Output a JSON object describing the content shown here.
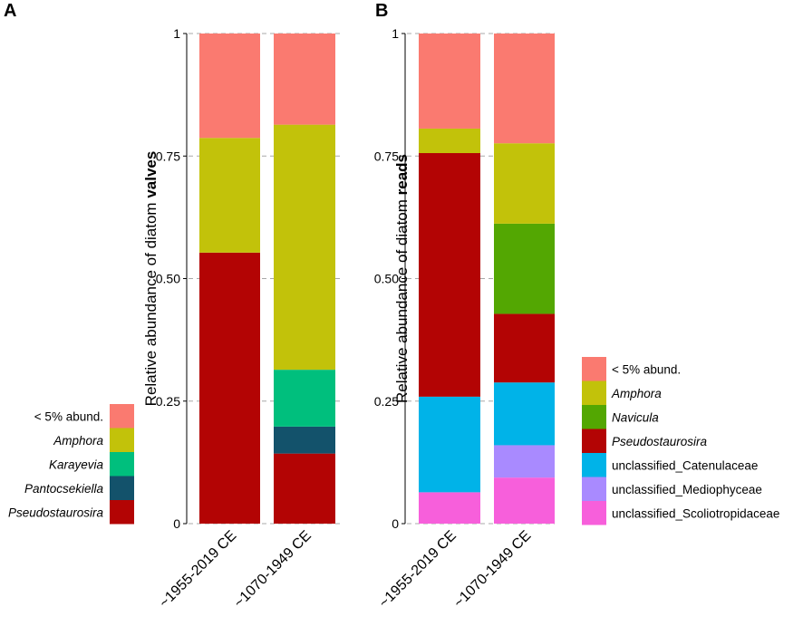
{
  "chart_data": [
    {
      "panel": "A",
      "type": "bar",
      "stacked": true,
      "ylabel_prefix": "Relative abundance of diatom ",
      "ylabel_bold": "valves",
      "ylim": [
        0,
        1
      ],
      "yticks": [
        0,
        0.25,
        0.5,
        0.75,
        1
      ],
      "ytick_labels": [
        "0",
        "0.25",
        "0.50",
        "0.75",
        "1"
      ],
      "grid": true,
      "categories": [
        "~1955-2019 CE",
        "~1070-1949 CE"
      ],
      "series": [
        {
          "name": "Pseudostaurosira",
          "italic": true,
          "color": "#b30404",
          "values": [
            0.553,
            0.143
          ]
        },
        {
          "name": "Pantocsekiella",
          "italic": true,
          "color": "#13526b",
          "values": [
            0.0,
            0.055
          ]
        },
        {
          "name": "Karayevia",
          "italic": true,
          "color": "#00bf7d",
          "values": [
            0.0,
            0.116
          ]
        },
        {
          "name": "Amphora",
          "italic": true,
          "color": "#c2c20a",
          "values": [
            0.234,
            0.5
          ]
        },
        {
          "name": "< 5% abund.",
          "italic": false,
          "color": "#fa7a70",
          "values": [
            0.213,
            0.186
          ]
        }
      ],
      "legend_order": [
        "< 5% abund.",
        "Amphora",
        "Karayevia",
        "Pantocsekiella",
        "Pseudostaurosira"
      ],
      "legend_position": "left-bottom"
    },
    {
      "panel": "B",
      "type": "bar",
      "stacked": true,
      "ylabel_prefix": "Relative abundance of diatom ",
      "ylabel_bold": "reads",
      "ylim": [
        0,
        1
      ],
      "yticks": [
        0,
        0.25,
        0.5,
        0.75,
        1
      ],
      "ytick_labels": [
        "0",
        "0.25",
        "0.50",
        "0.75",
        "1"
      ],
      "grid": true,
      "categories": [
        "~1955-2019 CE",
        "~1070-1949 CE"
      ],
      "series": [
        {
          "name": "unclassified_Scoliotropidaceae",
          "italic": false,
          "color": "#f75fdb",
          "values": [
            0.064,
            0.094
          ]
        },
        {
          "name": "unclassified_Mediophyceae",
          "italic": false,
          "color": "#a98aff",
          "values": [
            0.0,
            0.066
          ]
        },
        {
          "name": "unclassified_Catenulaceae",
          "italic": false,
          "color": "#00b3e8",
          "values": [
            0.195,
            0.128
          ]
        },
        {
          "name": "Pseudostaurosira",
          "italic": true,
          "color": "#b30404",
          "values": [
            0.497,
            0.14
          ]
        },
        {
          "name": "Navicula",
          "italic": true,
          "color": "#53a702",
          "values": [
            0.0,
            0.184
          ]
        },
        {
          "name": "Amphora",
          "italic": true,
          "color": "#c2c20a",
          "values": [
            0.05,
            0.164
          ]
        },
        {
          "name": "< 5% abund.",
          "italic": false,
          "color": "#fa7a70",
          "values": [
            0.194,
            0.224
          ]
        }
      ],
      "legend_order": [
        "< 5% abund.",
        "Amphora",
        "Navicula",
        "Pseudostaurosira",
        "unclassified_Catenulaceae",
        "unclassified_Mediophyceae",
        "unclassified_Scoliotropidaceae"
      ],
      "legend_position": "right-bottom"
    }
  ]
}
